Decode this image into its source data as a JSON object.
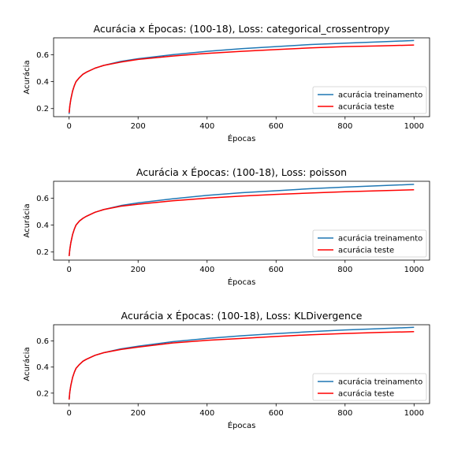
{
  "chart_data": [
    {
      "type": "line",
      "title": "Acurácia x Épocas: (100-18), Loss: categorical_crossentropy",
      "xlabel": "Épocas",
      "ylabel": "Acurácia",
      "xlim": [
        -45,
        1045
      ],
      "ylim": [
        0.14,
        0.725
      ],
      "xticks": [
        0,
        200,
        400,
        600,
        800,
        1000
      ],
      "yticks": [
        0.2,
        0.4,
        0.6
      ],
      "legend_position": "lower-right",
      "series": [
        {
          "name": "acurácia treinamento",
          "color": "#1f77b4",
          "x": [
            0,
            2,
            5,
            10,
            15,
            20,
            30,
            40,
            50,
            75,
            100,
            150,
            200,
            300,
            400,
            500,
            600,
            700,
            800,
            900,
            1000
          ],
          "y": [
            0.16,
            0.22,
            0.27,
            0.33,
            0.37,
            0.4,
            0.43,
            0.455,
            0.47,
            0.5,
            0.52,
            0.55,
            0.57,
            0.6,
            0.625,
            0.645,
            0.66,
            0.675,
            0.685,
            0.695,
            0.705
          ]
        },
        {
          "name": "acurácia teste",
          "color": "#ff0000",
          "x": [
            0,
            2,
            5,
            10,
            15,
            20,
            30,
            40,
            50,
            75,
            100,
            150,
            200,
            300,
            400,
            500,
            600,
            700,
            800,
            900,
            1000
          ],
          "y": [
            0.17,
            0.22,
            0.27,
            0.33,
            0.37,
            0.4,
            0.43,
            0.455,
            0.47,
            0.5,
            0.52,
            0.545,
            0.565,
            0.59,
            0.61,
            0.625,
            0.638,
            0.65,
            0.66,
            0.665,
            0.672
          ]
        }
      ]
    },
    {
      "type": "line",
      "title": "Acurácia x Épocas: (100-18), Loss: poisson",
      "xlabel": "Épocas",
      "ylabel": "Acurácia",
      "xlim": [
        -45,
        1045
      ],
      "ylim": [
        0.14,
        0.725
      ],
      "xticks": [
        0,
        200,
        400,
        600,
        800,
        1000
      ],
      "yticks": [
        0.2,
        0.4,
        0.6
      ],
      "legend_position": "lower-right",
      "series": [
        {
          "name": "acurácia treinamento",
          "color": "#1f77b4",
          "x": [
            0,
            2,
            5,
            10,
            15,
            20,
            30,
            40,
            50,
            75,
            100,
            150,
            200,
            300,
            400,
            500,
            600,
            700,
            800,
            900,
            1000
          ],
          "y": [
            0.17,
            0.22,
            0.27,
            0.33,
            0.37,
            0.4,
            0.43,
            0.45,
            0.465,
            0.495,
            0.515,
            0.545,
            0.565,
            0.595,
            0.62,
            0.64,
            0.655,
            0.67,
            0.682,
            0.692,
            0.702
          ]
        },
        {
          "name": "acurácia teste",
          "color": "#ff0000",
          "x": [
            0,
            2,
            5,
            10,
            15,
            20,
            30,
            40,
            50,
            75,
            100,
            150,
            200,
            300,
            400,
            500,
            600,
            700,
            800,
            900,
            1000
          ],
          "y": [
            0.17,
            0.22,
            0.27,
            0.33,
            0.37,
            0.4,
            0.43,
            0.45,
            0.465,
            0.495,
            0.515,
            0.54,
            0.555,
            0.58,
            0.6,
            0.615,
            0.628,
            0.638,
            0.648,
            0.655,
            0.662
          ]
        }
      ]
    },
    {
      "type": "line",
      "title": "Acurácia x Épocas: (100-18), Loss: KLDivergence",
      "xlabel": "Épocas",
      "ylabel": "Acurácia",
      "xlim": [
        -45,
        1045
      ],
      "ylim": [
        0.12,
        0.725
      ],
      "xticks": [
        0,
        200,
        400,
        600,
        800,
        1000
      ],
      "yticks": [
        0.2,
        0.4,
        0.6
      ],
      "legend_position": "lower-right",
      "series": [
        {
          "name": "acurácia treinamento",
          "color": "#1f77b4",
          "x": [
            0,
            2,
            5,
            10,
            15,
            20,
            30,
            40,
            50,
            75,
            100,
            150,
            200,
            300,
            400,
            500,
            600,
            700,
            800,
            900,
            1000
          ],
          "y": [
            0.15,
            0.21,
            0.26,
            0.32,
            0.36,
            0.39,
            0.42,
            0.445,
            0.46,
            0.49,
            0.51,
            0.54,
            0.56,
            0.595,
            0.62,
            0.64,
            0.657,
            0.672,
            0.685,
            0.695,
            0.705
          ]
        },
        {
          "name": "acurácia teste",
          "color": "#ff0000",
          "x": [
            0,
            2,
            5,
            10,
            15,
            20,
            30,
            40,
            50,
            75,
            100,
            150,
            200,
            300,
            400,
            500,
            600,
            700,
            800,
            900,
            1000
          ],
          "y": [
            0.15,
            0.21,
            0.26,
            0.32,
            0.36,
            0.39,
            0.42,
            0.445,
            0.46,
            0.49,
            0.51,
            0.535,
            0.553,
            0.585,
            0.605,
            0.62,
            0.635,
            0.648,
            0.658,
            0.666,
            0.672
          ]
        }
      ]
    }
  ]
}
